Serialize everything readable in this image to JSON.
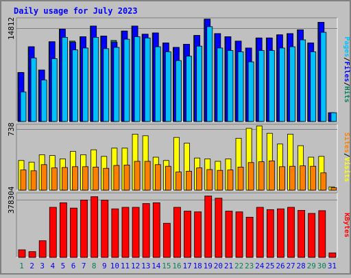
{
  "chart_data": {
    "title": "Daily usage for July 2023",
    "days": [
      "1",
      "2",
      "3",
      "4",
      "5",
      "6",
      "7",
      "8",
      "9",
      "10",
      "11",
      "12",
      "13",
      "14",
      "15",
      "16",
      "17",
      "18",
      "19",
      "20",
      "21",
      "22",
      "23",
      "24",
      "25",
      "26",
      "27",
      "28",
      "29",
      "30",
      "31"
    ],
    "highlight_days": [
      "1",
      "8",
      "15",
      "16",
      "22",
      "23",
      "29",
      "30"
    ],
    "colors": {
      "hits": "#00805c",
      "files": "#0000ff",
      "pages": "#00c0ff",
      "visits": "#ffff00",
      "sites": "#ff8000",
      "kbytes": "#ff0000",
      "title": "#0000ff",
      "weekend_day": "#00805c",
      "weekday_day": "#0000ff"
    },
    "panels": [
      {
        "type": "bar",
        "y_label": "14812",
        "axis_legend": [
          "Pages",
          "/",
          "Files",
          "/",
          "Hits"
        ],
        "axis_legend_colors": [
          "#00c0ff",
          "#000000",
          "#0000ff",
          "#000000",
          "#00805c"
        ],
        "y_max": 16500,
        "series": [
          {
            "name": "Hits",
            "values": [
              7800,
              11900,
              8200,
              12700,
              14700,
              12800,
              13500,
              15200,
              13600,
              12900,
              14400,
              15200,
              13900,
              14100,
              12500,
              11800,
              12300,
              13700,
              16300,
              14000,
              13500,
              12800,
              11700,
              13300,
              13300,
              13800,
              14000,
              14600,
              12500,
              15800,
              1400
            ]
          },
          {
            "name": "Files",
            "values": [
              7800,
              11900,
              8200,
              12700,
              14700,
              12600,
              13500,
              15200,
              13600,
              12600,
              14400,
              15200,
              13900,
              14100,
              12500,
              11800,
              12300,
              13700,
              16300,
              14000,
              13500,
              12800,
              11700,
              13300,
              13300,
              13800,
              14000,
              14600,
              12500,
              15800,
              1400
            ]
          },
          {
            "name": "Pages",
            "values": [
              4700,
              10100,
              6600,
              10000,
              13400,
              11400,
              11700,
              13400,
              11600,
              11800,
              13100,
              13500,
              13300,
              11900,
              11100,
              9700,
              10400,
              12000,
              15100,
              11700,
              11300,
              11100,
              9500,
              11300,
              11300,
              11700,
              11900,
              13000,
              11100,
              14200,
              1400
            ]
          }
        ]
      },
      {
        "type": "bar",
        "y_label": "738",
        "axis_legend": [
          "Sites",
          "/",
          "Visits"
        ],
        "axis_legend_colors": [
          "#ff8000",
          "#000000",
          "#ffff00"
        ],
        "y_max": 800,
        "series": [
          {
            "name": "Visits",
            "values": [
              360,
              340,
              430,
              420,
              380,
              470,
              430,
              490,
              410,
              510,
              510,
              680,
              660,
              400,
              360,
              640,
              570,
              390,
              380,
              350,
              380,
              630,
              750,
              780,
              690,
              560,
              680,
              540,
              400,
              410,
              40
            ]
          },
          {
            "name": "Sites",
            "values": [
              245,
              235,
              310,
              270,
              275,
              285,
              285,
              280,
              265,
              300,
              305,
              350,
              350,
              310,
              290,
              220,
              230,
              270,
              250,
              240,
              245,
              280,
              335,
              345,
              355,
              285,
              290,
              295,
              290,
              210,
              30
            ]
          }
        ]
      },
      {
        "type": "bar",
        "y_label": "378304",
        "axis_legend": [
          "KBytes"
        ],
        "axis_legend_colors": [
          "#ff0000"
        ],
        "y_max": 425000,
        "series": [
          {
            "name": "KBytes",
            "values": [
              50000,
              38000,
              110000,
              330000,
              360000,
              325000,
              378000,
              400000,
              377000,
              320000,
              330000,
              330000,
              355000,
              360000,
              225000,
              330000,
              305000,
              300000,
              405000,
              390000,
              305000,
              300000,
              265000,
              330000,
              315000,
              320000,
              330000,
              310000,
              290000,
              308000,
              30000
            ]
          }
        ]
      }
    ]
  }
}
